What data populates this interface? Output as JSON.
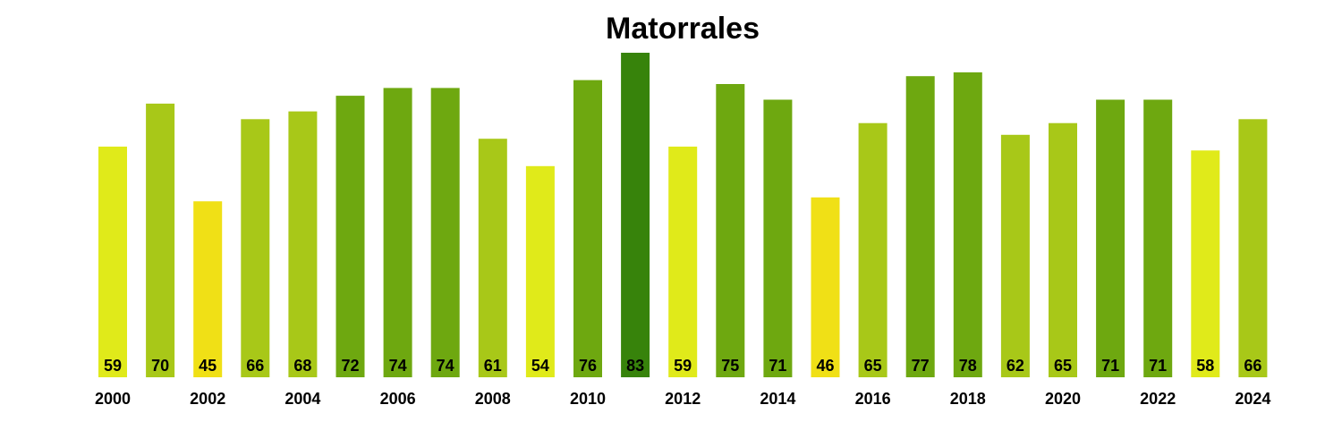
{
  "chart_data": {
    "type": "bar",
    "title": "Matorrales",
    "xlabel": "",
    "ylabel": "",
    "grid": false,
    "legend": "none",
    "ylim": [
      0,
      83
    ],
    "categories": [
      "2000",
      "2001",
      "2002",
      "2003",
      "2004",
      "2005",
      "2006",
      "2007",
      "2008",
      "2009",
      "2010",
      "2011",
      "2012",
      "2013",
      "2014",
      "2015",
      "2016",
      "2017",
      "2018",
      "2019",
      "2020",
      "2021",
      "2022",
      "2023",
      "2024"
    ],
    "x_tick_labels": [
      "2000",
      "2002",
      "2004",
      "2006",
      "2008",
      "2010",
      "2012",
      "2014",
      "2016",
      "2018",
      "2020",
      "2022",
      "2024"
    ],
    "values": [
      59,
      70,
      45,
      66,
      68,
      72,
      74,
      74,
      61,
      54,
      76,
      83,
      59,
      75,
      71,
      46,
      65,
      77,
      78,
      62,
      65,
      71,
      71,
      58,
      66
    ],
    "color_scale": {
      "low": "#f0e016",
      "mid_low": "#e0ea1a",
      "mid": "#a8c818",
      "mid_high": "#6ea810",
      "high": "#37830b"
    }
  }
}
